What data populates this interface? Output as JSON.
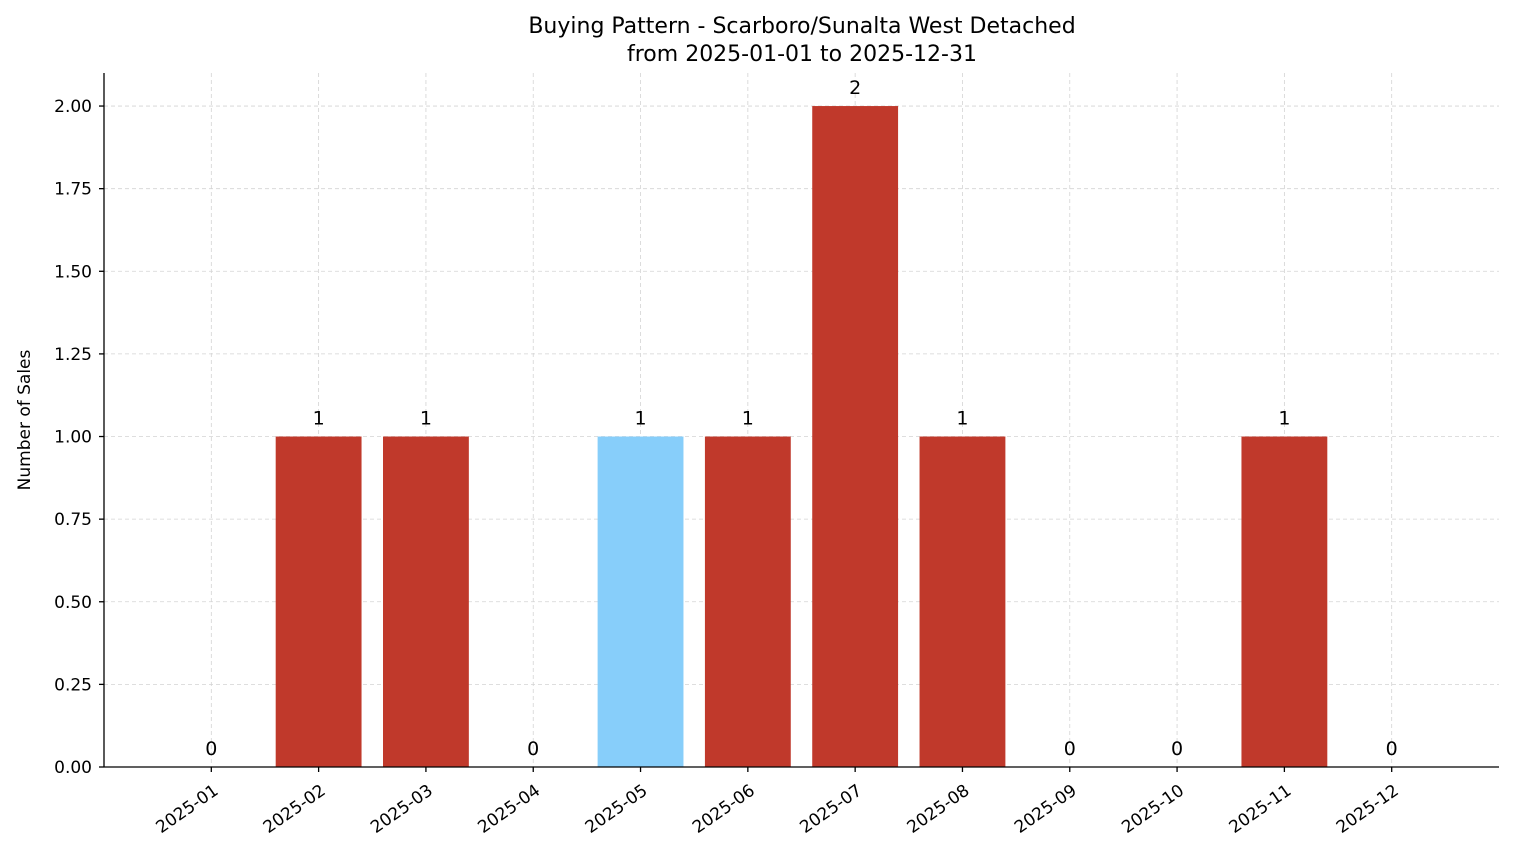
{
  "chart_data": {
    "type": "bar",
    "title": "Buying Pattern - Scarboro/Sunalta West Detached",
    "subtitle": "from 2025-01-01 to 2025-12-31",
    "y_label": "Number of Sales",
    "categories": [
      "2025-01",
      "2025-02",
      "2025-03",
      "2025-04",
      "2025-05",
      "2025-06",
      "2025-07",
      "2025-08",
      "2025-09",
      "2025-10",
      "2025-11",
      "2025-12"
    ],
    "values": [
      0,
      1,
      1,
      0,
      1,
      1,
      2,
      1,
      0,
      0,
      1,
      0
    ],
    "colors": [
      "#c0392b",
      "#c0392b",
      "#c0392b",
      "#c0392b",
      "#87cefa",
      "#c0392b",
      "#c0392b",
      "#c0392b",
      "#c0392b",
      "#c0392b",
      "#c0392b",
      "#c0392b"
    ],
    "ylim": [
      0,
      2.1
    ],
    "yticks": [
      {
        "value": 0,
        "label": "0.00"
      },
      {
        "value": 0.25,
        "label": "0.25"
      },
      {
        "value": 0.5,
        "label": "0.50"
      },
      {
        "value": 0.75,
        "label": "0.75"
      },
      {
        "value": 1,
        "label": "1.00"
      },
      {
        "value": 1.25,
        "label": "1.25"
      },
      {
        "value": 1.5,
        "label": "1.50"
      },
      {
        "value": 1.75,
        "label": "1.75"
      },
      {
        "value": 2,
        "label": "2.00"
      }
    ],
    "grid": true
  }
}
